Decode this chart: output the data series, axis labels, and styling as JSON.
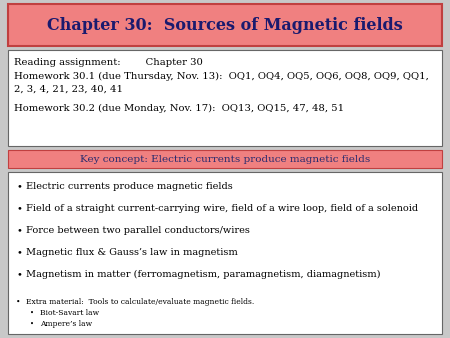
{
  "title": "Chapter 30:  Sources of Magnetic fields",
  "title_bg": "#f08080",
  "title_border": "#c04040",
  "title_text_color": "#1a1a6e",
  "slide_bg": "#c8c8c8",
  "reading_lines": [
    "Reading assignment:        Chapter 30",
    "Homework 30.1 (due Thursday, Nov. 13):  OQ1, OQ4, OQ5, OQ6, OQ8, OQ9, QQ1,\n2, 3, 4, 21, 23, 40, 41",
    "Homework 30.2 (due Monday, Nov. 17):  OQ13, OQ15, 47, 48, 51"
  ],
  "key_concept": "Key concept: Electric currents produce magnetic fields",
  "key_concept_bg": "#f08080",
  "key_concept_text_color": "#2b2b6e",
  "bullets": [
    "Electric currents produce magnetic fields",
    "Field of a straight current-carrying wire, field of a wire loop, field of a solenoid",
    "Force between two parallel conductors/wires",
    "Magnetic flux & Gauss’s law in magnetism",
    "Magnetism in matter (ferromagnetism, paramagnetism, diamagnetism)"
  ],
  "extra_header": "Extra material:  Tools to calculate/evaluate magnetic fields.",
  "extra_sub": [
    "Biot-Savart law",
    "Ampere’s law"
  ]
}
